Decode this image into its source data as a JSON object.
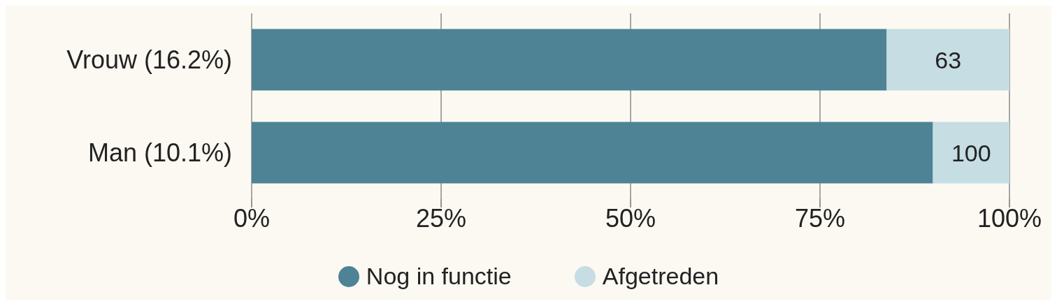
{
  "chart_data": {
    "type": "bar",
    "orientation": "horizontal",
    "stacked": true,
    "categories": [
      "Vrouw (16.2%)",
      "Man (10.1%)"
    ],
    "series": [
      {
        "name": "Nog in functie",
        "color": "#4e8396",
        "values": [
          83.8,
          89.9
        ]
      },
      {
        "name": "Afgetreden",
        "color": "#c5dde3",
        "values": [
          16.2,
          10.1
        ]
      }
    ],
    "annotations": [
      "63",
      "100"
    ],
    "xlim": [
      0,
      100
    ],
    "xticks": [
      {
        "value": 0,
        "label": "0%"
      },
      {
        "value": 25,
        "label": "25%"
      },
      {
        "value": 50,
        "label": "50%"
      },
      {
        "value": 75,
        "label": "75%"
      },
      {
        "value": 100,
        "label": "100%"
      }
    ],
    "grid": "x",
    "legend": "bottom",
    "marker": "circle"
  }
}
